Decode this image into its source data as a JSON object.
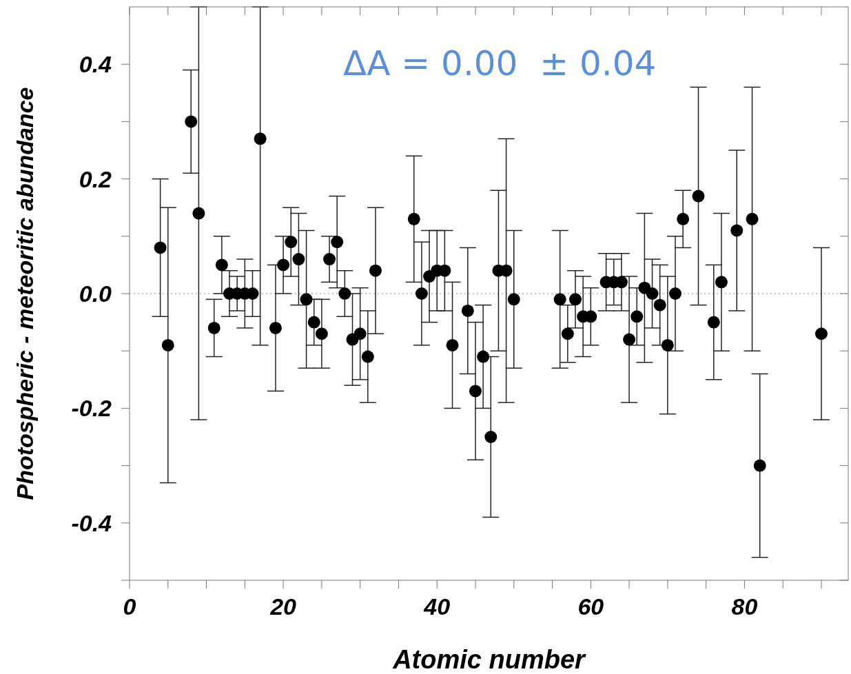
{
  "chart_data": {
    "type": "scatter",
    "xlabel": "Atomic number",
    "ylabel": "Photospheric - meteoritic abundance",
    "x": [
      4,
      5,
      8,
      9,
      11,
      12,
      13,
      14,
      15,
      16,
      17,
      19,
      20,
      21,
      22,
      23,
      24,
      25,
      26,
      27,
      28,
      29,
      30,
      31,
      32,
      37,
      38,
      39,
      40,
      41,
      42,
      44,
      45,
      46,
      47,
      48,
      49,
      50,
      56,
      57,
      58,
      59,
      60,
      62,
      63,
      64,
      65,
      66,
      67,
      68,
      69,
      70,
      71,
      72,
      74,
      76,
      77,
      79,
      81,
      82,
      90
    ],
    "values": [
      0.08,
      -0.09,
      0.3,
      0.14,
      -0.06,
      0.05,
      0.0,
      0.0,
      0.0,
      0.0,
      0.27,
      -0.06,
      0.05,
      0.09,
      0.06,
      -0.01,
      -0.05,
      -0.07,
      0.06,
      0.09,
      0.0,
      -0.08,
      -0.07,
      -0.11,
      0.04,
      0.13,
      0.0,
      0.03,
      0.04,
      0.04,
      -0.09,
      -0.03,
      -0.17,
      -0.11,
      -0.25,
      0.04,
      0.04,
      -0.01,
      -0.01,
      -0.07,
      -0.01,
      -0.04,
      -0.04,
      0.02,
      0.02,
      0.02,
      -0.08,
      -0.04,
      0.01,
      0.0,
      -0.02,
      -0.09,
      0.0,
      0.13,
      0.17,
      -0.05,
      0.02,
      0.11,
      0.13,
      -0.3,
      -0.07
    ],
    "errors": [
      [
        -0.04,
        0.2
      ],
      [
        -0.33,
        0.15
      ],
      [
        0.21,
        0.39
      ],
      [
        -0.22,
        0.5
      ],
      [
        -0.11,
        -0.01
      ],
      [
        0.0,
        0.1
      ],
      [
        -0.04,
        0.04
      ],
      [
        -0.03,
        0.03
      ],
      [
        -0.06,
        0.06
      ],
      [
        -0.04,
        0.04
      ],
      [
        -0.09,
        0.5
      ],
      [
        -0.17,
        0.05
      ],
      [
        0.0,
        0.1
      ],
      [
        0.03,
        0.15
      ],
      [
        -0.02,
        0.14
      ],
      [
        -0.13,
        0.11
      ],
      [
        -0.09,
        -0.01
      ],
      [
        -0.13,
        -0.01
      ],
      [
        0.02,
        0.1
      ],
      [
        0.01,
        0.17
      ],
      [
        -0.04,
        0.04
      ],
      [
        -0.16,
        0.0
      ],
      [
        -0.15,
        0.01
      ],
      [
        -0.19,
        -0.03
      ],
      [
        -0.07,
        0.15
      ],
      [
        0.02,
        0.24
      ],
      [
        -0.09,
        0.09
      ],
      [
        -0.05,
        0.11
      ],
      [
        -0.03,
        0.11
      ],
      [
        -0.03,
        0.11
      ],
      [
        -0.2,
        0.02
      ],
      [
        -0.14,
        0.08
      ],
      [
        -0.29,
        -0.05
      ],
      [
        -0.2,
        -0.02
      ],
      [
        -0.39,
        -0.11
      ],
      [
        -0.1,
        0.18
      ],
      [
        -0.19,
        0.27
      ],
      [
        -0.13,
        0.11
      ],
      [
        -0.13,
        0.11
      ],
      [
        -0.12,
        -0.02
      ],
      [
        -0.06,
        0.04
      ],
      [
        -0.11,
        0.03
      ],
      [
        -0.09,
        0.01
      ],
      [
        -0.03,
        0.07
      ],
      [
        -0.02,
        0.06
      ],
      [
        -0.03,
        0.07
      ],
      [
        -0.19,
        0.03
      ],
      [
        -0.09,
        0.01
      ],
      [
        -0.12,
        0.14
      ],
      [
        -0.06,
        0.06
      ],
      [
        -0.09,
        0.05
      ],
      [
        -0.21,
        0.03
      ],
      [
        -0.1,
        0.1
      ],
      [
        0.08,
        0.18
      ],
      [
        -0.02,
        0.36
      ],
      [
        -0.15,
        0.05
      ],
      [
        -0.1,
        0.14
      ],
      [
        -0.03,
        0.25
      ],
      [
        -0.1,
        0.36
      ],
      [
        -0.46,
        -0.14
      ],
      [
        -0.22,
        0.08
      ]
    ],
    "color": "#000000",
    "marker": "circle",
    "xlim": [
      0,
      93.5
    ],
    "xticks": [
      0,
      {
        "value": 5,
        "label": null
      },
      20,
      {
        "value": 10,
        "label": null
      },
      {
        "value": 15,
        "label": null
      },
      {
        "value": 25,
        "label": null
      },
      {
        "value": 30,
        "label": null
      },
      {
        "value": 35,
        "label": null
      },
      40,
      {
        "value": 45,
        "label": null
      },
      {
        "value": 50,
        "label": null
      },
      {
        "value": 55,
        "label": null
      },
      60,
      {
        "value": 65,
        "label": null
      },
      {
        "value": 70,
        "label": null
      },
      {
        "value": 75,
        "label": null
      },
      80,
      {
        "value": 85,
        "label": null
      },
      {
        "value": 90,
        "label": null
      }
    ],
    "ylim": [
      -0.5,
      0.5
    ],
    "yticks": [
      -0.4,
      {
        "value": -0.5,
        "label": null
      },
      {
        "value": -0.3,
        "label": null
      },
      -0.2,
      {
        "value": -0.1,
        "label": null
      },
      {
        "value": 0,
        "label": "0.0"
      },
      {
        "value": 0.1,
        "label": null
      },
      0.2,
      {
        "value": 0.3,
        "label": null
      },
      0.4
    ],
    "ref_lines": [
      {
        "axis": "y",
        "value": 0,
        "label": null,
        "color": "#888888",
        "line_style": "dotted"
      }
    ],
    "annotations": [
      "ΔA = 0.00  ± 0.04"
    ],
    "grid": false,
    "legend": false
  }
}
